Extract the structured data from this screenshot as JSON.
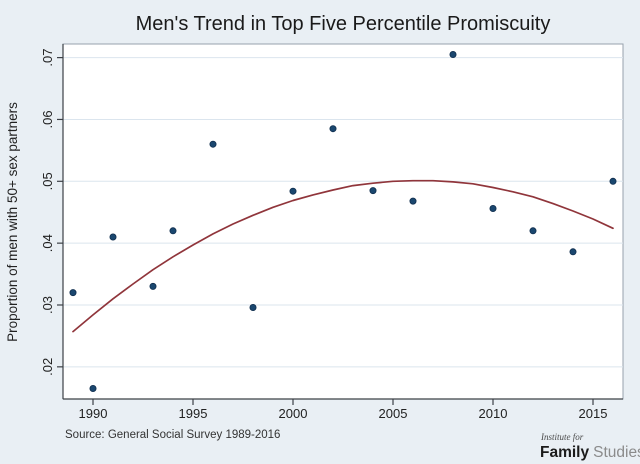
{
  "title": "Men's Trend in Top Five Percentile Promiscuity",
  "footer": {
    "source": "Source: General Social Survey 1989-2016",
    "logo": {
      "line1": "Institute for",
      "family": "Family",
      "studies": "Studies"
    }
  },
  "chart_data": {
    "type": "scatter",
    "title": "Men's Trend in Top Five Percentile Promiscuity",
    "xlabel": "",
    "ylabel": "Proportion of men with 50+ sex partners",
    "xlim": [
      1988.5,
      2016.5
    ],
    "ylim": [
      0.0148,
      0.0722
    ],
    "grid": "horizontal",
    "legend": "none",
    "x_ticks": {
      "values": [
        1990,
        1995,
        2000,
        2005,
        2010,
        2015
      ],
      "labels": [
        "1990",
        "1995",
        "2000",
        "2005",
        "2010",
        "2015"
      ]
    },
    "y_ticks": {
      "values": [
        0.02,
        0.03,
        0.04,
        0.05,
        0.06,
        0.07
      ],
      "labels": [
        ".02",
        ".03",
        ".04",
        ".05",
        ".06",
        ".07"
      ]
    },
    "series": [
      {
        "name": "observed proportion",
        "type": "scatter",
        "x": [
          1989,
          1990,
          1991,
          1993,
          1994,
          1996,
          1998,
          2000,
          2002,
          2004,
          2006,
          2008,
          2010,
          2012,
          2014,
          2016
        ],
        "y": [
          0.032,
          0.0165,
          0.041,
          0.033,
          0.042,
          0.056,
          0.0296,
          0.0484,
          0.0585,
          0.0485,
          0.0468,
          0.0705,
          0.0456,
          0.042,
          0.0386,
          0.05
        ]
      },
      {
        "name": "quadratic trend",
        "type": "line",
        "x": [
          1989,
          1990,
          1991,
          1992,
          1993,
          1994,
          1995,
          1996,
          1997,
          1998,
          1999,
          2000,
          2001,
          2002,
          2003,
          2004,
          2005,
          2006,
          2007,
          2008,
          2009,
          2010,
          2011,
          2012,
          2013,
          2014,
          2015,
          2016
        ],
        "y": [
          0.0257,
          0.0284,
          0.031,
          0.0334,
          0.0357,
          0.0378,
          0.0397,
          0.0415,
          0.0431,
          0.0445,
          0.0458,
          0.0469,
          0.0478,
          0.0486,
          0.0493,
          0.0497,
          0.05,
          0.0501,
          0.0501,
          0.0499,
          0.0496,
          0.049,
          0.0483,
          0.0475,
          0.0464,
          0.0452,
          0.0439,
          0.0424
        ]
      }
    ],
    "colors": {
      "background": "#e9eff4",
      "plot_background": "#ffffff",
      "gridline": "#dbe5ee",
      "plot_border": "#97a1ac",
      "axis": "#3c4046",
      "marker": "#1a476f",
      "marker_edge": "#0f2d4d",
      "trend": "#90353b",
      "text": "#222222"
    }
  }
}
